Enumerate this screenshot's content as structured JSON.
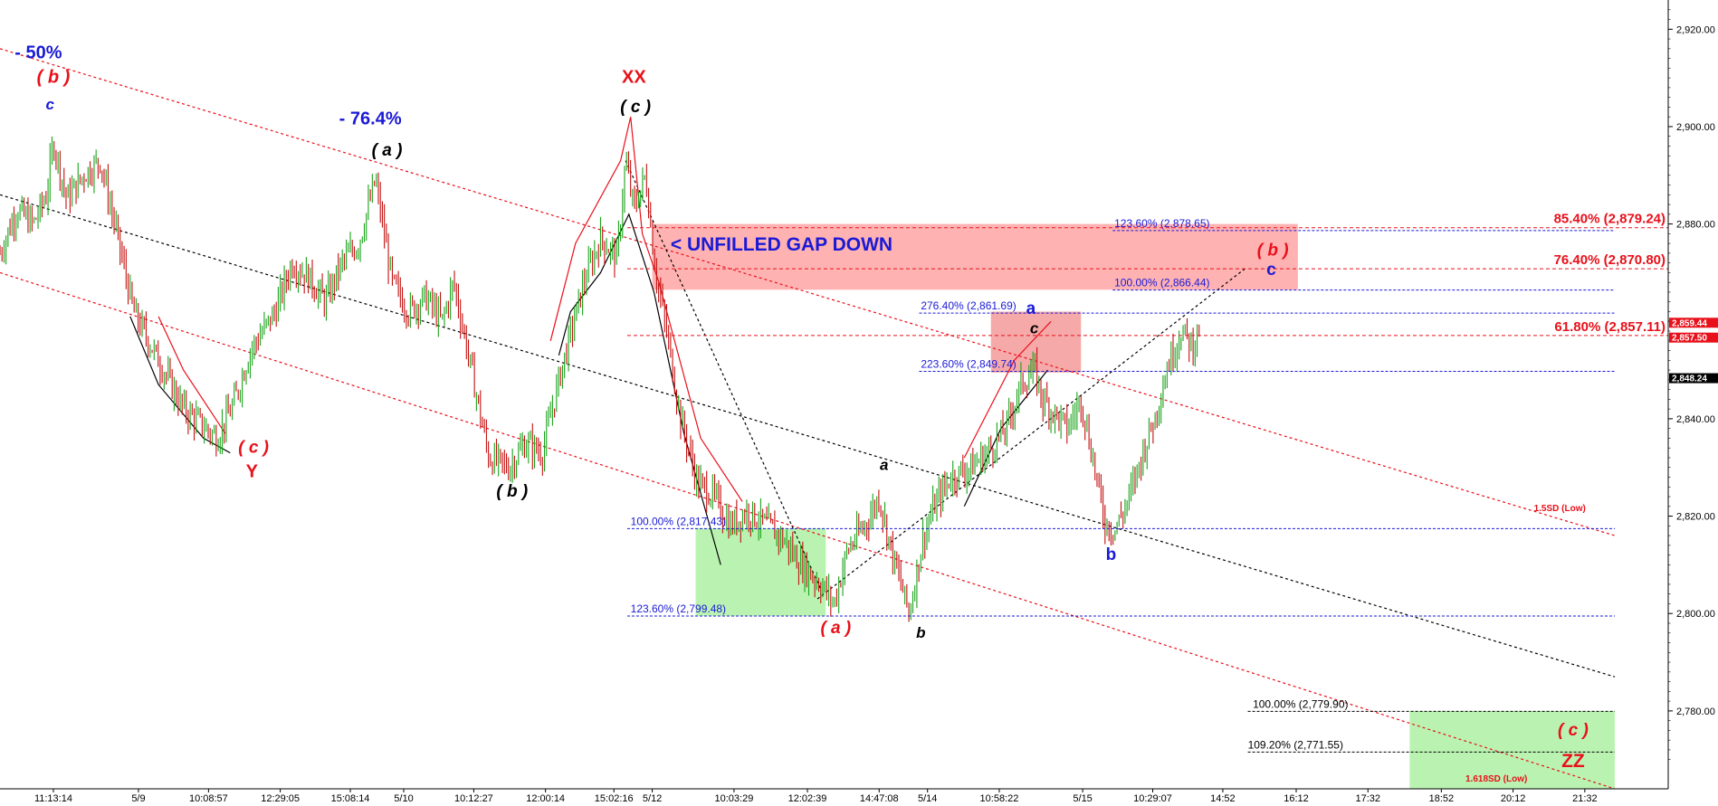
{
  "chart_data": {
    "type": "candlestick",
    "y_axis": {
      "ylim": [
        2764,
        2926
      ],
      "ticks": [
        2780,
        2800,
        2820,
        2840,
        2860,
        2880,
        2900,
        2920
      ],
      "tick_labels": [
        "2,780.00",
        "2,800.00",
        "2,820.00",
        "2,840.00",
        "2,860.00",
        "2,880.00",
        "2,900.00",
        "2,920.00"
      ],
      "price_tags": [
        {
          "label": "2,859.44",
          "value": 2859.44,
          "color": "#e8101a"
        },
        {
          "label": "2,857.50",
          "value": 2857.5,
          "color": "#e8101a"
        },
        {
          "label": "2,848.24",
          "value": 2848.24,
          "color": "#000000"
        }
      ]
    },
    "x_axis": {
      "xlim": [
        0,
        1000
      ],
      "ticks": [
        {
          "t": 32,
          "label": "11:13:14"
        },
        {
          "t": 83,
          "label": "5/9"
        },
        {
          "t": 125,
          "label": "10:08:57"
        },
        {
          "t": 168,
          "label": "12:29:05"
        },
        {
          "t": 210,
          "label": "15:08:14"
        },
        {
          "t": 242,
          "label": "5/10"
        },
        {
          "t": 284,
          "label": "10:12:27"
        },
        {
          "t": 327,
          "label": "12:00:14"
        },
        {
          "t": 368,
          "label": "15:02:16"
        },
        {
          "t": 391,
          "label": "5/12"
        },
        {
          "t": 440,
          "label": "10:03:29"
        },
        {
          "t": 484,
          "label": "12:02:39"
        },
        {
          "t": 527,
          "label": "14:47:08"
        },
        {
          "t": 556,
          "label": "5/14"
        },
        {
          "t": 599,
          "label": "10:58:22"
        },
        {
          "t": 649,
          "label": "5/15"
        },
        {
          "t": 691,
          "label": "10:29:07"
        },
        {
          "t": 733,
          "label": "14:52"
        },
        {
          "t": 777,
          "label": "16:12"
        },
        {
          "t": 820,
          "label": "17:32"
        },
        {
          "t": 864,
          "label": "18:52"
        },
        {
          "t": 907,
          "label": "20:12"
        },
        {
          "t": 950,
          "label": "21:32"
        }
      ]
    },
    "price_path": [
      [
        0,
        2874
      ],
      [
        10,
        2883
      ],
      [
        20,
        2880
      ],
      [
        28,
        2886
      ],
      [
        32,
        2897
      ],
      [
        40,
        2885
      ],
      [
        50,
        2890
      ],
      [
        60,
        2893
      ],
      [
        70,
        2878
      ],
      [
        80,
        2862
      ],
      [
        95,
        2852
      ],
      [
        110,
        2842
      ],
      [
        130,
        2836
      ],
      [
        140,
        2843
      ],
      [
        150,
        2854
      ],
      [
        165,
        2862
      ],
      [
        175,
        2872
      ],
      [
        185,
        2869
      ],
      [
        195,
        2864
      ],
      [
        205,
        2872
      ],
      [
        215,
        2876
      ],
      [
        225,
        2889
      ],
      [
        235,
        2868
      ],
      [
        245,
        2862
      ],
      [
        255,
        2865
      ],
      [
        265,
        2860
      ],
      [
        272,
        2868
      ],
      [
        282,
        2851
      ],
      [
        293,
        2832
      ],
      [
        305,
        2830
      ],
      [
        315,
        2835
      ],
      [
        325,
        2833
      ],
      [
        335,
        2848
      ],
      [
        350,
        2868
      ],
      [
        360,
        2877
      ],
      [
        370,
        2873
      ],
      [
        375,
        2893
      ],
      [
        380,
        2883
      ],
      [
        387,
        2890
      ],
      [
        393,
        2870
      ],
      [
        400,
        2857
      ],
      [
        408,
        2840
      ],
      [
        418,
        2827
      ],
      [
        428,
        2824
      ],
      [
        438,
        2818
      ],
      [
        448,
        2821
      ],
      [
        460,
        2818
      ],
      [
        470,
        2815
      ],
      [
        480,
        2810
      ],
      [
        492,
        2806
      ],
      [
        500,
        2802
      ],
      [
        508,
        2813
      ],
      [
        520,
        2819
      ],
      [
        527,
        2824
      ],
      [
        535,
        2812
      ],
      [
        545,
        2800
      ],
      [
        553,
        2815
      ],
      [
        560,
        2822
      ],
      [
        570,
        2828
      ],
      [
        582,
        2830
      ],
      [
        592,
        2833
      ],
      [
        603,
        2838
      ],
      [
        612,
        2847
      ],
      [
        620,
        2850
      ],
      [
        625,
        2844
      ],
      [
        632,
        2841
      ],
      [
        640,
        2838
      ],
      [
        648,
        2844
      ],
      [
        655,
        2832
      ],
      [
        662,
        2819
      ],
      [
        668,
        2817
      ],
      [
        676,
        2823
      ],
      [
        685,
        2833
      ],
      [
        692,
        2840
      ],
      [
        700,
        2851
      ],
      [
        708,
        2858
      ],
      [
        715,
        2855
      ],
      [
        720,
        2860
      ]
    ],
    "fib_levels": [
      {
        "label": "123.60% (2,878.65)",
        "value": 2878.65,
        "color": "#1a1ad6",
        "t0": 667,
        "t1": 968,
        "label_t": 668
      },
      {
        "label": "100.00% (2,866.44)",
        "value": 2866.44,
        "color": "#1a1ad6",
        "t0": 667,
        "t1": 968,
        "label_t": 668
      },
      {
        "label": "276.40% (2,861.69)",
        "value": 2861.69,
        "color": "#1a1ad6",
        "t0": 551,
        "t1": 968,
        "label_t": 552
      },
      {
        "label": "223.60% (2,849.74)",
        "value": 2849.74,
        "color": "#1a1ad6",
        "t0": 551,
        "t1": 968,
        "label_t": 552
      },
      {
        "label": "100.00% (2,817.43)",
        "value": 2817.43,
        "color": "#1a1ad6",
        "t0": 376,
        "t1": 968,
        "label_t": 378
      },
      {
        "label": "123.60% (2,799.48)",
        "value": 2799.48,
        "color": "#1a1ad6",
        "t0": 376,
        "t1": 968,
        "label_t": 378
      },
      {
        "label": "100.00% (2,779.90)",
        "value": 2779.9,
        "color": "#000000",
        "t0": 748,
        "t1": 968,
        "label_t": 751
      },
      {
        "label": "109.20% (2,771.55)",
        "value": 2771.55,
        "color": "#000000",
        "t0": 748,
        "t1": 968,
        "label_t": 748
      }
    ],
    "red_fib_levels": [
      {
        "label": "85.40% (2,879.24)",
        "value": 2879.24
      },
      {
        "label": "76.40% (2,870.80)",
        "value": 2870.8
      },
      {
        "label": "61.80% (2,857.11)",
        "value": 2857.11
      }
    ],
    "zones": [
      {
        "name": "unfilled-gap-zone",
        "t0": 391,
        "t1": 778,
        "y0": 2866.5,
        "y1": 2880,
        "color": "#ffaaaa"
      },
      {
        "name": "target-b-zone",
        "t0": 594,
        "t1": 648,
        "y0": 2849.5,
        "y1": 2862,
        "color": "#f5a0a0"
      },
      {
        "name": "support-zone",
        "t0": 417,
        "t1": 495,
        "y0": 2799.5,
        "y1": 2817.5,
        "color": "#b2f2a8"
      },
      {
        "name": "target-c-zone",
        "t0": 845,
        "t1": 968,
        "y0": 2764,
        "y1": 2780,
        "color": "#b2f2a8"
      }
    ],
    "annotations": [
      {
        "text": "- 50%",
        "t": 23,
        "y": 2914,
        "color": "#1a1ad6",
        "size": 20,
        "italic": false
      },
      {
        "text": "( b )",
        "t": 32,
        "y": 2909,
        "color": "#e8101a",
        "size": 20,
        "italic": true
      },
      {
        "text": "c",
        "t": 30,
        "y": 2903.5,
        "color": "#1a1ad6",
        "size": 17,
        "italic": true
      },
      {
        "text": "- 76.4%",
        "t": 222,
        "y": 2900.5,
        "color": "#1a1ad6",
        "size": 20,
        "italic": false
      },
      {
        "text": "( a )",
        "t": 232,
        "y": 2894,
        "color": "#000000",
        "size": 19,
        "italic": true
      },
      {
        "text": "XX",
        "t": 380,
        "y": 2909,
        "color": "#e8101a",
        "size": 20,
        "italic": false
      },
      {
        "text": "( c )",
        "t": 381,
        "y": 2903,
        "color": "#000000",
        "size": 19,
        "italic": true
      },
      {
        "text": "( c )",
        "t": 152,
        "y": 2833,
        "color": "#e8101a",
        "size": 19,
        "italic": true
      },
      {
        "text": "Y",
        "t": 151,
        "y": 2828,
        "color": "#e8101a",
        "size": 20,
        "italic": false
      },
      {
        "text": "( b )",
        "t": 307,
        "y": 2824,
        "color": "#000000",
        "size": 19,
        "italic": true
      },
      {
        "text": "< UNFILLED GAP DOWN",
        "t": 402,
        "y": 2874.5,
        "color": "#1a1ad6",
        "size": 21,
        "italic": false
      },
      {
        "text": "a",
        "t": 530,
        "y": 2829.5,
        "color": "#000000",
        "size": 17,
        "italic": true
      },
      {
        "text": "( a )",
        "t": 501,
        "y": 2796,
        "color": "#e8101a",
        "size": 19,
        "italic": true
      },
      {
        "text": "b",
        "t": 552,
        "y": 2795,
        "color": "#000000",
        "size": 17,
        "italic": true
      },
      {
        "text": "a",
        "t": 618,
        "y": 2861.5,
        "color": "#1a1ad6",
        "size": 19,
        "italic": false
      },
      {
        "text": "c",
        "t": 620,
        "y": 2857.5,
        "color": "#000000",
        "size": 17,
        "italic": true
      },
      {
        "text": "b",
        "t": 666,
        "y": 2811,
        "color": "#1a1ad6",
        "size": 19,
        "italic": false
      },
      {
        "text": "( b )",
        "t": 763,
        "y": 2873.5,
        "color": "#e8101a",
        "size": 19,
        "italic": true
      },
      {
        "text": "c",
        "t": 762,
        "y": 2869.5,
        "color": "#1a1ad6",
        "size": 19,
        "italic": false
      },
      {
        "text": "( c )",
        "t": 943,
        "y": 2775,
        "color": "#e8101a",
        "size": 19,
        "italic": true
      },
      {
        "text": "ZZ",
        "t": 943,
        "y": 2768.5,
        "color": "#e8101a",
        "size": 21,
        "italic": false
      },
      {
        "text": "1.5SD (Low)",
        "t": 935,
        "y": 2821,
        "color": "#e8101a",
        "size": 10,
        "italic": false
      },
      {
        "text": "1.618SD (Low)",
        "t": 897,
        "y": 2765.5,
        "color": "#e8101a",
        "size": 10,
        "italic": false
      }
    ],
    "channel_lines": [
      {
        "name": "upper-red-channel",
        "t0": 0,
        "y0": 2916,
        "t1": 968,
        "y1": 2816,
        "color": "#e8101a"
      },
      {
        "name": "lower-red-channel",
        "t0": 0,
        "y0": 2870,
        "t1": 968,
        "y1": 2764,
        "color": "#e8101a"
      },
      {
        "name": "middle-black-channel",
        "t0": 0,
        "y0": 2886,
        "t1": 968,
        "y1": 2787,
        "color": "#000000"
      },
      {
        "name": "dashed-projection-1",
        "t0": 375,
        "y0": 2893,
        "t1": 492,
        "y1": 2805,
        "color": "#000000"
      },
      {
        "name": "dashed-projection-2",
        "t0": 490,
        "y0": 2803,
        "t1": 747,
        "y1": 2871,
        "color": "#000000"
      }
    ],
    "wave_lines": [
      {
        "color": "#000000",
        "points": [
          [
            78,
            2861
          ],
          [
            95,
            2847
          ],
          [
            122,
            2836
          ],
          [
            138,
            2833
          ]
        ]
      },
      {
        "color": "#e8101a",
        "points": [
          [
            95,
            2861
          ],
          [
            110,
            2850
          ],
          [
            135,
            2837
          ]
        ]
      },
      {
        "color": "#e8101a",
        "points": [
          [
            330,
            2856
          ],
          [
            345,
            2876
          ],
          [
            372,
            2893
          ],
          [
            378,
            2902
          ],
          [
            385,
            2878
          ],
          [
            395,
            2868
          ],
          [
            420,
            2836
          ],
          [
            445,
            2823
          ]
        ]
      },
      {
        "color": "#000000",
        "points": [
          [
            335,
            2853
          ],
          [
            342,
            2862
          ],
          [
            360,
            2870
          ],
          [
            377,
            2882
          ],
          [
            392,
            2866
          ],
          [
            410,
            2837
          ],
          [
            432,
            2810
          ]
        ]
      },
      {
        "color": "#e8101a",
        "points": [
          [
            578,
            2832
          ],
          [
            608,
            2852
          ],
          [
            630,
            2860
          ]
        ]
      },
      {
        "color": "#000000",
        "points": [
          [
            578,
            2822
          ],
          [
            600,
            2838
          ],
          [
            628,
            2850
          ]
        ]
      }
    ]
  }
}
